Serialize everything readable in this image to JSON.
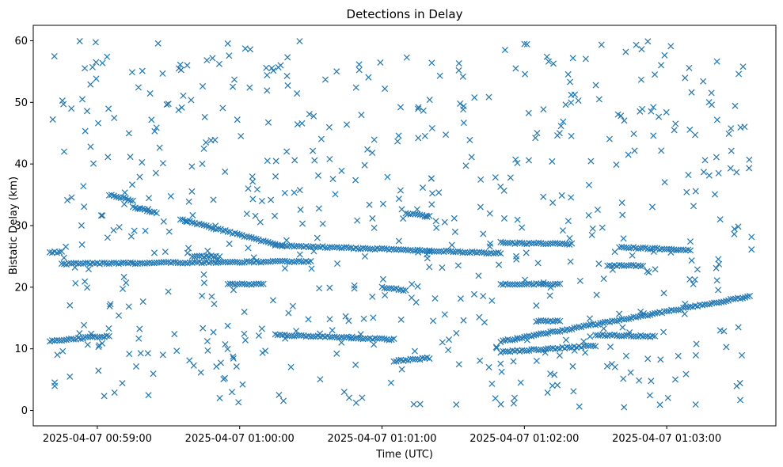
{
  "chart_data": {
    "type": "scatter",
    "title": "Detections in Delay",
    "xlabel": "Time (UTC)",
    "ylabel": "Bistatic Delay (km)",
    "marker": "x",
    "color": "#1f77b4",
    "x_ticks": [
      {
        "value": "00:59:00",
        "label": "2025-04-07 00:59:00"
      },
      {
        "value": "01:00:00",
        "label": "2025-04-07 01:00:00"
      },
      {
        "value": "01:01:00",
        "label": "2025-04-07 01:01:00"
      },
      {
        "value": "01:02:00",
        "label": "2025-04-07 01:02:00"
      },
      {
        "value": "01:03:00",
        "label": "2025-04-07 01:03:00"
      }
    ],
    "xlim": [
      "00:58:33",
      "01:03:46"
    ],
    "y_ticks": [
      0,
      10,
      20,
      30,
      40,
      50,
      60
    ],
    "ylim": [
      -2.5,
      62.5
    ],
    "grid": false,
    "tracks": [
      {
        "x": [
          "00:58:40",
          "00:59:05"
        ],
        "y": [
          11.3,
          12.1
        ]
      },
      {
        "x": [
          "01:00:15",
          "01:01:05"
        ],
        "y": [
          12.3,
          11.5
        ]
      },
      {
        "x": [
          "01:01:50",
          "01:03:35"
        ],
        "y": [
          11.2,
          18.5
        ]
      },
      {
        "x": [
          "01:01:50",
          "01:02:30"
        ],
        "y": [
          9.5,
          10.5
        ]
      },
      {
        "x": [
          "01:02:30",
          "01:02:55"
        ],
        "y": [
          12.3,
          12.0
        ]
      },
      {
        "x": [
          "00:59:05",
          "00:59:15"
        ],
        "y": [
          35.0,
          34.0
        ]
      },
      {
        "x": [
          "00:59:15",
          "00:59:25"
        ],
        "y": [
          33.0,
          32.0
        ]
      },
      {
        "x": [
          "00:59:35",
          "01:00:15"
        ],
        "y": [
          31.0,
          27.0
        ]
      },
      {
        "x": [
          "01:00:15",
          "01:01:50"
        ],
        "y": [
          26.8,
          25.5
        ]
      },
      {
        "x": [
          "01:01:50",
          "01:02:20"
        ],
        "y": [
          27.2,
          27.0
        ]
      },
      {
        "x": [
          "01:02:40",
          "01:03:10"
        ],
        "y": [
          26.5,
          26.0
        ]
      },
      {
        "x": [
          "00:58:40",
          "00:58:45"
        ],
        "y": [
          25.7,
          25.7
        ]
      },
      {
        "x": [
          "00:59:40",
          "00:59:50"
        ],
        "y": [
          25.0,
          25.0
        ]
      },
      {
        "x": [
          "00:58:45",
          "01:00:30"
        ],
        "y": [
          23.8,
          24.2
        ]
      },
      {
        "x": [
          "00:59:55",
          "01:00:10"
        ],
        "y": [
          20.5,
          20.5
        ]
      },
      {
        "x": [
          "01:01:05",
          "01:01:20"
        ],
        "y": [
          8.0,
          8.5
        ]
      },
      {
        "x": [
          "01:01:10",
          "01:01:20"
        ],
        "y": [
          32.0,
          31.5
        ]
      },
      {
        "x": [
          "01:01:50",
          "01:02:15"
        ],
        "y": [
          20.5,
          20.5
        ]
      },
      {
        "x": [
          "01:02:35",
          "01:02:50"
        ],
        "y": [
          23.5,
          23.5
        ]
      },
      {
        "x": [
          "01:01:00",
          "01:01:10"
        ],
        "y": [
          20.0,
          19.5
        ]
      },
      {
        "x": [
          "01:02:05",
          "01:02:15"
        ],
        "y": [
          14.5,
          14.5
        ]
      }
    ],
    "background_points": {
      "count": 620,
      "x_range": [
        "00:58:40",
        "01:03:36"
      ],
      "y_range": [
        0.5,
        60
      ],
      "distribution": "uniform"
    }
  }
}
